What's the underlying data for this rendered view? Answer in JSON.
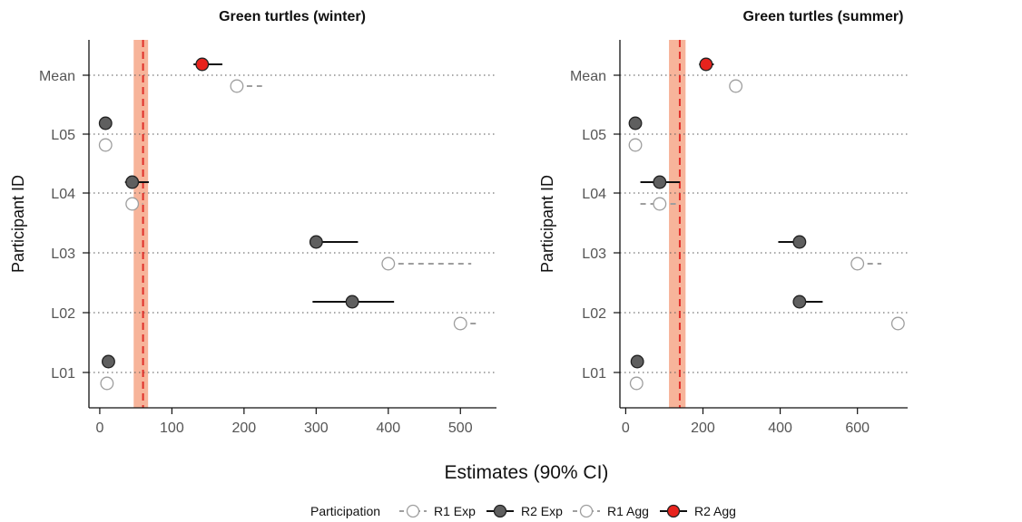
{
  "x_axis_title": "Estimates (90% CI)",
  "legend": {
    "title": "Participation",
    "entries": [
      {
        "label": "R1 Exp",
        "style": "r1"
      },
      {
        "label": "R2 Exp",
        "style": "r2exp"
      },
      {
        "label": "R1 Agg",
        "style": "r1"
      },
      {
        "label": "R2 Agg",
        "style": "r2agg"
      }
    ]
  },
  "colors": {
    "r1_stroke": "#9e9e9e",
    "r2_exp_fill": "#5f5f5f",
    "r2_agg_fill": "#e8231d",
    "reference_line": "#e0302a",
    "reference_band": "#f7b49a",
    "gridline": "#555555"
  },
  "chart_data": [
    {
      "type": "scatter",
      "title": "Green turtles (winter)",
      "xlabel": "Estimates (90% CI)",
      "ylabel": "Participant ID",
      "categories": [
        "L01",
        "L02",
        "L03",
        "L04",
        "L05",
        "Mean"
      ],
      "xlim": [
        -15,
        550
      ],
      "xticks": [
        0,
        100,
        200,
        300,
        400,
        500
      ],
      "reference": {
        "value": 60,
        "band": [
          47,
          67
        ]
      },
      "series": [
        {
          "name": "R1 Exp",
          "points": [
            {
              "y": "L01",
              "x": 10,
              "lo": null,
              "hi": null
            },
            {
              "y": "L02",
              "x": 500,
              "lo": null,
              "hi": 522
            },
            {
              "y": "L03",
              "x": 400,
              "lo": null,
              "hi": 515
            },
            {
              "y": "L04",
              "x": 45,
              "lo": null,
              "hi": 60
            },
            {
              "y": "L05",
              "x": 8,
              "lo": null,
              "hi": null
            }
          ]
        },
        {
          "name": "R2 Exp",
          "points": [
            {
              "y": "L01",
              "x": 12,
              "lo": null,
              "hi": null
            },
            {
              "y": "L02",
              "x": 350,
              "lo": 295,
              "hi": 408
            },
            {
              "y": "L03",
              "x": 300,
              "lo": null,
              "hi": 358
            },
            {
              "y": "L04",
              "x": 45,
              "lo": 35,
              "hi": 68
            },
            {
              "y": "L05",
              "x": 8,
              "lo": null,
              "hi": null
            }
          ]
        },
        {
          "name": "R1 Agg",
          "points": [
            {
              "y": "Mean",
              "x": 190,
              "lo": null,
              "hi": 225
            }
          ]
        },
        {
          "name": "R2 Agg",
          "points": [
            {
              "y": "Mean",
              "x": 142,
              "lo": 130,
              "hi": 170
            }
          ]
        }
      ]
    },
    {
      "type": "scatter",
      "title": "Green turtles (summer)",
      "xlabel": "Estimates (90% CI)",
      "ylabel": "Participant ID",
      "categories": [
        "L01",
        "L02",
        "L03",
        "L04",
        "L05",
        "Mean"
      ],
      "xlim": [
        -15,
        730
      ],
      "xticks": [
        0,
        200,
        400,
        600
      ],
      "reference": {
        "value": 140,
        "band": [
          112,
          155
        ]
      },
      "series": [
        {
          "name": "R1 Exp",
          "points": [
            {
              "y": "L01",
              "x": 28,
              "lo": null,
              "hi": null
            },
            {
              "y": "L02",
              "x": 705,
              "lo": null,
              "hi": null
            },
            {
              "y": "L03",
              "x": 600,
              "lo": null,
              "hi": 662
            },
            {
              "y": "L04",
              "x": 88,
              "lo": 38,
              "hi": 140
            },
            {
              "y": "L05",
              "x": 25,
              "lo": null,
              "hi": null
            }
          ]
        },
        {
          "name": "R2 Exp",
          "points": [
            {
              "y": "L01",
              "x": 30,
              "lo": null,
              "hi": null
            },
            {
              "y": "L02",
              "x": 450,
              "lo": null,
              "hi": 510
            },
            {
              "y": "L03",
              "x": 450,
              "lo": 395,
              "hi": null
            },
            {
              "y": "L04",
              "x": 88,
              "lo": 38,
              "hi": 140
            },
            {
              "y": "L05",
              "x": 25,
              "lo": null,
              "hi": null
            }
          ]
        },
        {
          "name": "R1 Agg",
          "points": [
            {
              "y": "Mean",
              "x": 285,
              "lo": null,
              "hi": 310
            }
          ]
        },
        {
          "name": "R2 Agg",
          "points": [
            {
              "y": "Mean",
              "x": 208,
              "lo": 190,
              "hi": 228
            }
          ]
        }
      ]
    }
  ]
}
